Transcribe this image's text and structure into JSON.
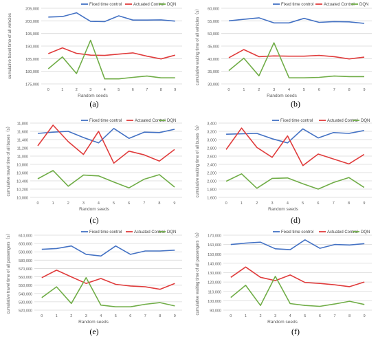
{
  "colors": {
    "fixed": "#4472C4",
    "actuated": "#E03C3C",
    "dqn": "#70AD47",
    "grid": "#d9d9d9",
    "axis_text": "#595959"
  },
  "chart_data": [
    {
      "id": "a",
      "type": "line",
      "caption": "(a)",
      "ylabel": "cumulative travel time of all vehicles",
      "xlabel": "Random seeds",
      "x": [
        0,
        1,
        2,
        3,
        4,
        5,
        6,
        7,
        8,
        9
      ],
      "ylim": [
        175000,
        205000
      ],
      "ystep": 5000,
      "ytick_labels": [
        "175,000",
        "180,000",
        "185,000",
        "190,000",
        "195,000",
        "200,000",
        "205,000"
      ],
      "legend": [
        "Fixed time control",
        "Actuated Control",
        "DQN"
      ],
      "series": [
        {
          "name": "Fixed time control",
          "values": [
            201500,
            201700,
            203200,
            199800,
            199700,
            202000,
            200300,
            200300,
            200400,
            199900
          ]
        },
        {
          "name": "Actuated Control",
          "values": [
            187000,
            189300,
            187100,
            186400,
            186300,
            186800,
            187300,
            186000,
            184900,
            186400
          ]
        },
        {
          "name": "DQN",
          "values": [
            181000,
            185700,
            179100,
            192300,
            177000,
            177000,
            177600,
            178100,
            177400,
            177400
          ]
        }
      ]
    },
    {
      "id": "b",
      "type": "line",
      "caption": "(b)",
      "ylabel": "cumulative waiting time of all vehicles（s）",
      "xlabel": "Random seeds",
      "x": [
        0,
        1,
        2,
        3,
        4,
        5,
        6,
        7,
        8,
        9
      ],
      "ylim": [
        30000,
        60000
      ],
      "ystep": 5000,
      "ytick_labels": [
        "30,000",
        "35,000",
        "40,000",
        "45,000",
        "50,000",
        "55,000",
        "60,000"
      ],
      "legend": [
        "Fixed time control",
        "Actuated Control",
        "DQN"
      ],
      "series": [
        {
          "name": "Fixed time control",
          "values": [
            55000,
            55600,
            56200,
            54200,
            54200,
            56000,
            54400,
            54700,
            54600,
            54000
          ]
        },
        {
          "name": "Actuated Control",
          "values": [
            40400,
            43600,
            40800,
            41100,
            41000,
            41000,
            41300,
            40800,
            39900,
            40600
          ]
        },
        {
          "name": "DQN",
          "values": [
            35300,
            40200,
            33200,
            46300,
            32400,
            32400,
            32600,
            33100,
            32900,
            32900
          ]
        }
      ]
    },
    {
      "id": "c",
      "type": "line",
      "caption": "(c)",
      "ylabel": "cumulative travel time of all buses（s）",
      "xlabel": "Random seeds",
      "x": [
        0,
        1,
        2,
        3,
        4,
        5,
        6,
        7,
        8,
        9
      ],
      "ylim": [
        10000,
        11800
      ],
      "ystep": 200,
      "ytick_labels": [
        "10,000",
        "10,200",
        "10,400",
        "10,600",
        "10,800",
        "11,000",
        "11,200",
        "11,400",
        "11,600",
        "11,800"
      ],
      "legend": [
        "Fixed time control",
        "Actuated Control",
        "DQN"
      ],
      "series": [
        {
          "name": "Fixed time control",
          "values": [
            11550,
            11580,
            11600,
            11450,
            11320,
            11670,
            11430,
            11580,
            11570,
            11650
          ]
        },
        {
          "name": "Actuated Control",
          "values": [
            11250,
            11750,
            11350,
            11040,
            11600,
            10830,
            11120,
            11030,
            10880,
            11160
          ]
        },
        {
          "name": "DQN",
          "values": [
            10450,
            10650,
            10270,
            10540,
            10520,
            10370,
            10230,
            10440,
            10550,
            10250
          ]
        }
      ]
    },
    {
      "id": "d",
      "type": "line",
      "caption": "(d)",
      "ylabel": "cumulative waiting time of all buses（s）",
      "xlabel": "Random seeds",
      "x": [
        0,
        1,
        2,
        3,
        4,
        5,
        6,
        7,
        8,
        9
      ],
      "ylim": [
        1600,
        3400
      ],
      "ystep": 200,
      "ytick_labels": [
        "1,600",
        "1,800",
        "2,000",
        "2,200",
        "2,400",
        "2,600",
        "2,800",
        "3,000",
        "3,200",
        "3,400"
      ],
      "legend": [
        "Fixed time control",
        "Actuated Control",
        "DQN"
      ],
      "series": [
        {
          "name": "Fixed time control",
          "values": [
            3130,
            3140,
            3150,
            3020,
            2920,
            3260,
            3040,
            3170,
            3150,
            3220
          ]
        },
        {
          "name": "Actuated Control",
          "values": [
            2760,
            3280,
            2810,
            2570,
            3090,
            2370,
            2650,
            2530,
            2410,
            2640
          ]
        },
        {
          "name": "DQN",
          "values": [
            1990,
            2170,
            1820,
            2060,
            2070,
            1930,
            1800,
            1960,
            2080,
            1840
          ]
        }
      ]
    },
    {
      "id": "e",
      "type": "line",
      "caption": "(e)",
      "ylabel": "cumulative travel time of all passengers（s）",
      "xlabel": "Random seeds",
      "x": [
        0,
        1,
        2,
        3,
        4,
        5,
        6,
        7,
        8,
        9
      ],
      "ylim": [
        520000,
        610000
      ],
      "ystep": 10000,
      "ytick_labels": [
        "520,000",
        "530,000",
        "540,000",
        "550,000",
        "560,000",
        "570,000",
        "580,000",
        "590,000",
        "600,000",
        "610,000"
      ],
      "legend": [
        "Fixed time control",
        "Actuated Control",
        "DQN"
      ],
      "series": [
        {
          "name": "Fixed time control",
          "values": [
            593000,
            594000,
            597000,
            587000,
            585000,
            597000,
            587000,
            591000,
            591000,
            592000
          ]
        },
        {
          "name": "Actuated Control",
          "values": [
            559000,
            568000,
            560000,
            552000,
            558000,
            551000,
            549000,
            548000,
            545000,
            552000
          ]
        },
        {
          "name": "DQN",
          "values": [
            535000,
            548000,
            528000,
            559000,
            526000,
            524000,
            524000,
            527000,
            529000,
            525000
          ]
        }
      ]
    },
    {
      "id": "f",
      "type": "line",
      "caption": "(f)",
      "ylabel": "cumulative waiting time of all passengers（s）",
      "xlabel": "Random seeds",
      "x": [
        0,
        1,
        2,
        3,
        4,
        5,
        6,
        7,
        8,
        9
      ],
      "ylim": [
        90000,
        170000
      ],
      "ystep": 10000,
      "ytick_labels": [
        "90,000",
        "100,000",
        "110,000",
        "120,000",
        "130,000",
        "140,000",
        "150,000",
        "160,000",
        "170,000"
      ],
      "legend": [
        "Fixed time control",
        "Actuated Control",
        "DQN"
      ],
      "series": [
        {
          "name": "Fixed time control",
          "values": [
            160000,
            161500,
            162500,
            155500,
            154500,
            165000,
            156000,
            160000,
            159500,
            161000
          ]
        },
        {
          "name": "Actuated Control",
          "values": [
            125000,
            136000,
            125000,
            121500,
            127500,
            119500,
            118500,
            117000,
            115000,
            120000
          ]
        },
        {
          "name": "DQN",
          "values": [
            103500,
            116500,
            95000,
            126000,
            97000,
            95000,
            94000,
            96500,
            99500,
            96000
          ]
        }
      ]
    }
  ]
}
